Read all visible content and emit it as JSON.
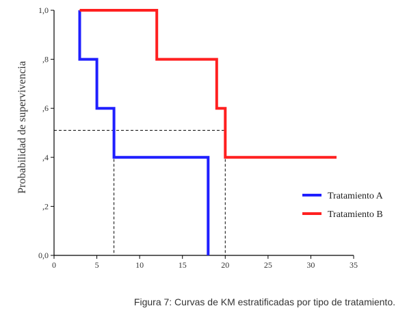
{
  "chart_data": {
    "type": "line",
    "subtype": "step",
    "ylabel": "Probabilidad de supervivencia",
    "xlim": [
      0,
      35
    ],
    "ylim": [
      0,
      1
    ],
    "x_ticks": [
      0,
      5,
      10,
      15,
      20,
      25,
      30,
      35
    ],
    "x_tick_labels": [
      "0",
      "5",
      "10",
      "15",
      "20",
      "25",
      "30",
      "35"
    ],
    "y_ticks": [
      0,
      0.2,
      0.4,
      0.6,
      0.8,
      1.0
    ],
    "y_tick_labels": [
      "0,0",
      ",2",
      ",4",
      ",6",
      ",8",
      "1,0"
    ],
    "grid": false,
    "legend_position": "bottom-right",
    "series": [
      {
        "name": "Tratamiento A",
        "color": "#1f1fff",
        "steps": [
          [
            3,
            1.0
          ],
          [
            3,
            0.8
          ],
          [
            5,
            0.8
          ],
          [
            5,
            0.6
          ],
          [
            7,
            0.6
          ],
          [
            7,
            0.4
          ],
          [
            18,
            0.4
          ],
          [
            18,
            0.0
          ]
        ]
      },
      {
        "name": "Tratamiento B",
        "color": "#ff2020",
        "steps": [
          [
            3,
            1.0
          ],
          [
            12,
            1.0
          ],
          [
            12,
            0.8
          ],
          [
            19,
            0.8
          ],
          [
            19,
            0.6
          ],
          [
            20,
            0.6
          ],
          [
            20,
            0.4
          ],
          [
            33,
            0.4
          ]
        ]
      }
    ],
    "reference_lines": {
      "median_y": 0.51,
      "median_x": [
        7,
        20
      ]
    }
  },
  "caption": "Figura 7: Curvas de KM estratificadas por tipo de tratamiento."
}
